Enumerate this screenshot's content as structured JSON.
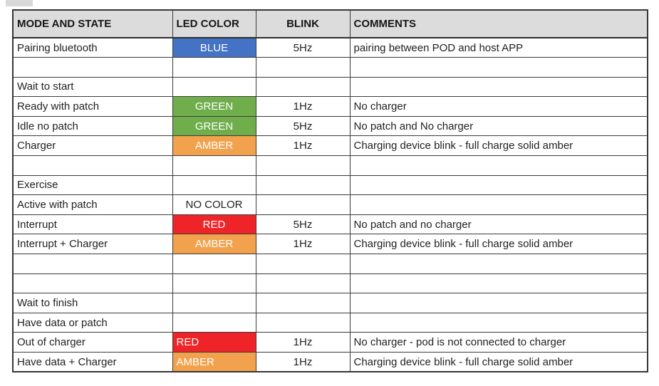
{
  "table": {
    "headers": [
      "MODE AND STATE",
      "LED COLOR",
      "BLINK",
      "COMMENTS"
    ],
    "header_bg": "#dcdcdc",
    "led_palette": {
      "BLUE": "#4472c4",
      "GREEN": "#6fae4b",
      "AMBER": "#f2a24d",
      "RED": "#ee2428"
    },
    "rows": [
      {
        "state": "Pairing bluetooth",
        "led": "BLUE",
        "led_fill": true,
        "led_align": "center",
        "blink": "5Hz",
        "comment": "pairing between POD and host APP"
      },
      {
        "state": "",
        "led": "",
        "led_fill": false,
        "led_align": "center",
        "blink": "",
        "comment": ""
      },
      {
        "state": "Wait to start",
        "led": "",
        "led_fill": false,
        "led_align": "center",
        "blink": "",
        "comment": ""
      },
      {
        "state": "Ready with patch",
        "led": "GREEN",
        "led_fill": true,
        "led_align": "center",
        "blink": "1Hz",
        "comment": "No charger"
      },
      {
        "state": "Idle no patch",
        "led": "GREEN",
        "led_fill": true,
        "led_align": "center",
        "blink": "5Hz",
        "comment": "No patch and No charger"
      },
      {
        "state": "Charger",
        "led": "AMBER",
        "led_fill": true,
        "led_align": "center",
        "blink": "1Hz",
        "comment": "Charging device blink - full charge solid amber"
      },
      {
        "state": "",
        "led": "",
        "led_fill": false,
        "led_align": "center",
        "blink": "",
        "comment": ""
      },
      {
        "state": "Exercise",
        "led": "",
        "led_fill": false,
        "led_align": "center",
        "blink": "",
        "comment": ""
      },
      {
        "state": "Active with patch",
        "led": "NO COLOR",
        "led_fill": false,
        "led_align": "center",
        "blink": "",
        "comment": ""
      },
      {
        "state": "Interrupt",
        "led": "RED",
        "led_fill": true,
        "led_align": "center",
        "blink": "5Hz",
        "comment": "No patch and no charger"
      },
      {
        "state": "Interrupt + Charger",
        "led": "AMBER",
        "led_fill": true,
        "led_align": "center",
        "blink": "1Hz",
        "comment": "Charging device blink - full charge solid amber"
      },
      {
        "state": "",
        "led": "",
        "led_fill": false,
        "led_align": "center",
        "blink": "",
        "comment": ""
      },
      {
        "state": "",
        "led": "",
        "led_fill": false,
        "led_align": "center",
        "blink": "",
        "comment": ""
      },
      {
        "state": "Wait to finish",
        "led": "",
        "led_fill": false,
        "led_align": "center",
        "blink": "",
        "comment": ""
      },
      {
        "state": "Have data or patch",
        "led": "",
        "led_fill": false,
        "led_align": "center",
        "blink": "",
        "comment": ""
      },
      {
        "state": "Out of charger",
        "led": "RED",
        "led_fill": true,
        "led_align": "left",
        "blink": "1Hz",
        "comment": "No charger - pod is not connected to charger"
      },
      {
        "state": "Have data + Charger",
        "led": "AMBER",
        "led_fill": true,
        "led_align": "left",
        "blink": "1Hz",
        "comment": "Charging device blink - full charge solid amber"
      }
    ]
  }
}
